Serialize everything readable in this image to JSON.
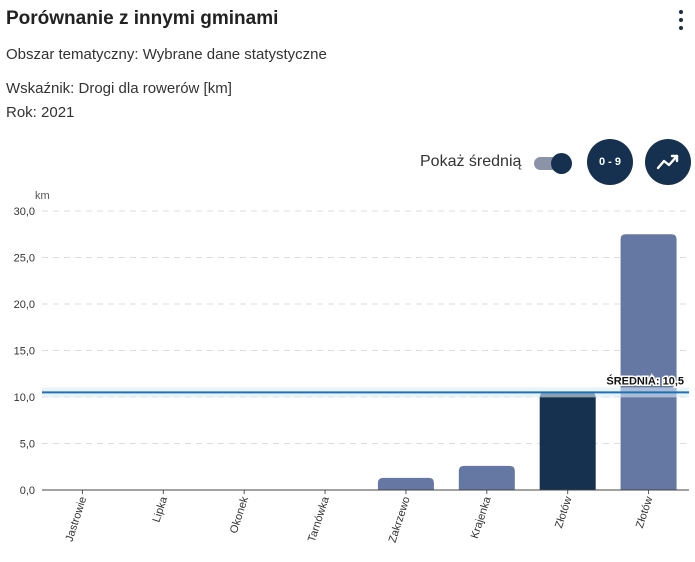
{
  "header": {
    "title": "Porównanie z innymi gminami",
    "area": "Obszar tematyczny: Wybrane dane statystyczne",
    "indicator": "Wskaźnik: Drogi dla rowerów [km]",
    "year": "Rok: 2021"
  },
  "controls": {
    "show_average_label": "Pokaż średnią",
    "show_average_on": true,
    "range_button_label": "0 - 9",
    "trend_icon": "trend-line-icon",
    "menu_icon": "more-vertical-icon"
  },
  "colors": {
    "bar": "#6577a3",
    "bar_highlight": "#16304f",
    "average_line": "#1a73b8",
    "primary": "#16304f"
  },
  "chart_data": {
    "type": "bar",
    "ylabel": "km",
    "ylim": [
      0,
      30
    ],
    "yticks": [
      "0,0",
      "5,0",
      "10,0",
      "15,0",
      "20,0",
      "25,0",
      "30,0"
    ],
    "categories": [
      "Jastrowie",
      "Lipka",
      "Okonek",
      "Tarnówka",
      "Zakrzewo",
      "Krajenka",
      "Złotów",
      "Złotów"
    ],
    "values": [
      0,
      0,
      0,
      0,
      1.3,
      2.6,
      10.5,
      27.5
    ],
    "highlight_index": 6,
    "average": {
      "label": "ŚREDNIA: 10,5",
      "value": 10.5
    },
    "grid": true
  }
}
